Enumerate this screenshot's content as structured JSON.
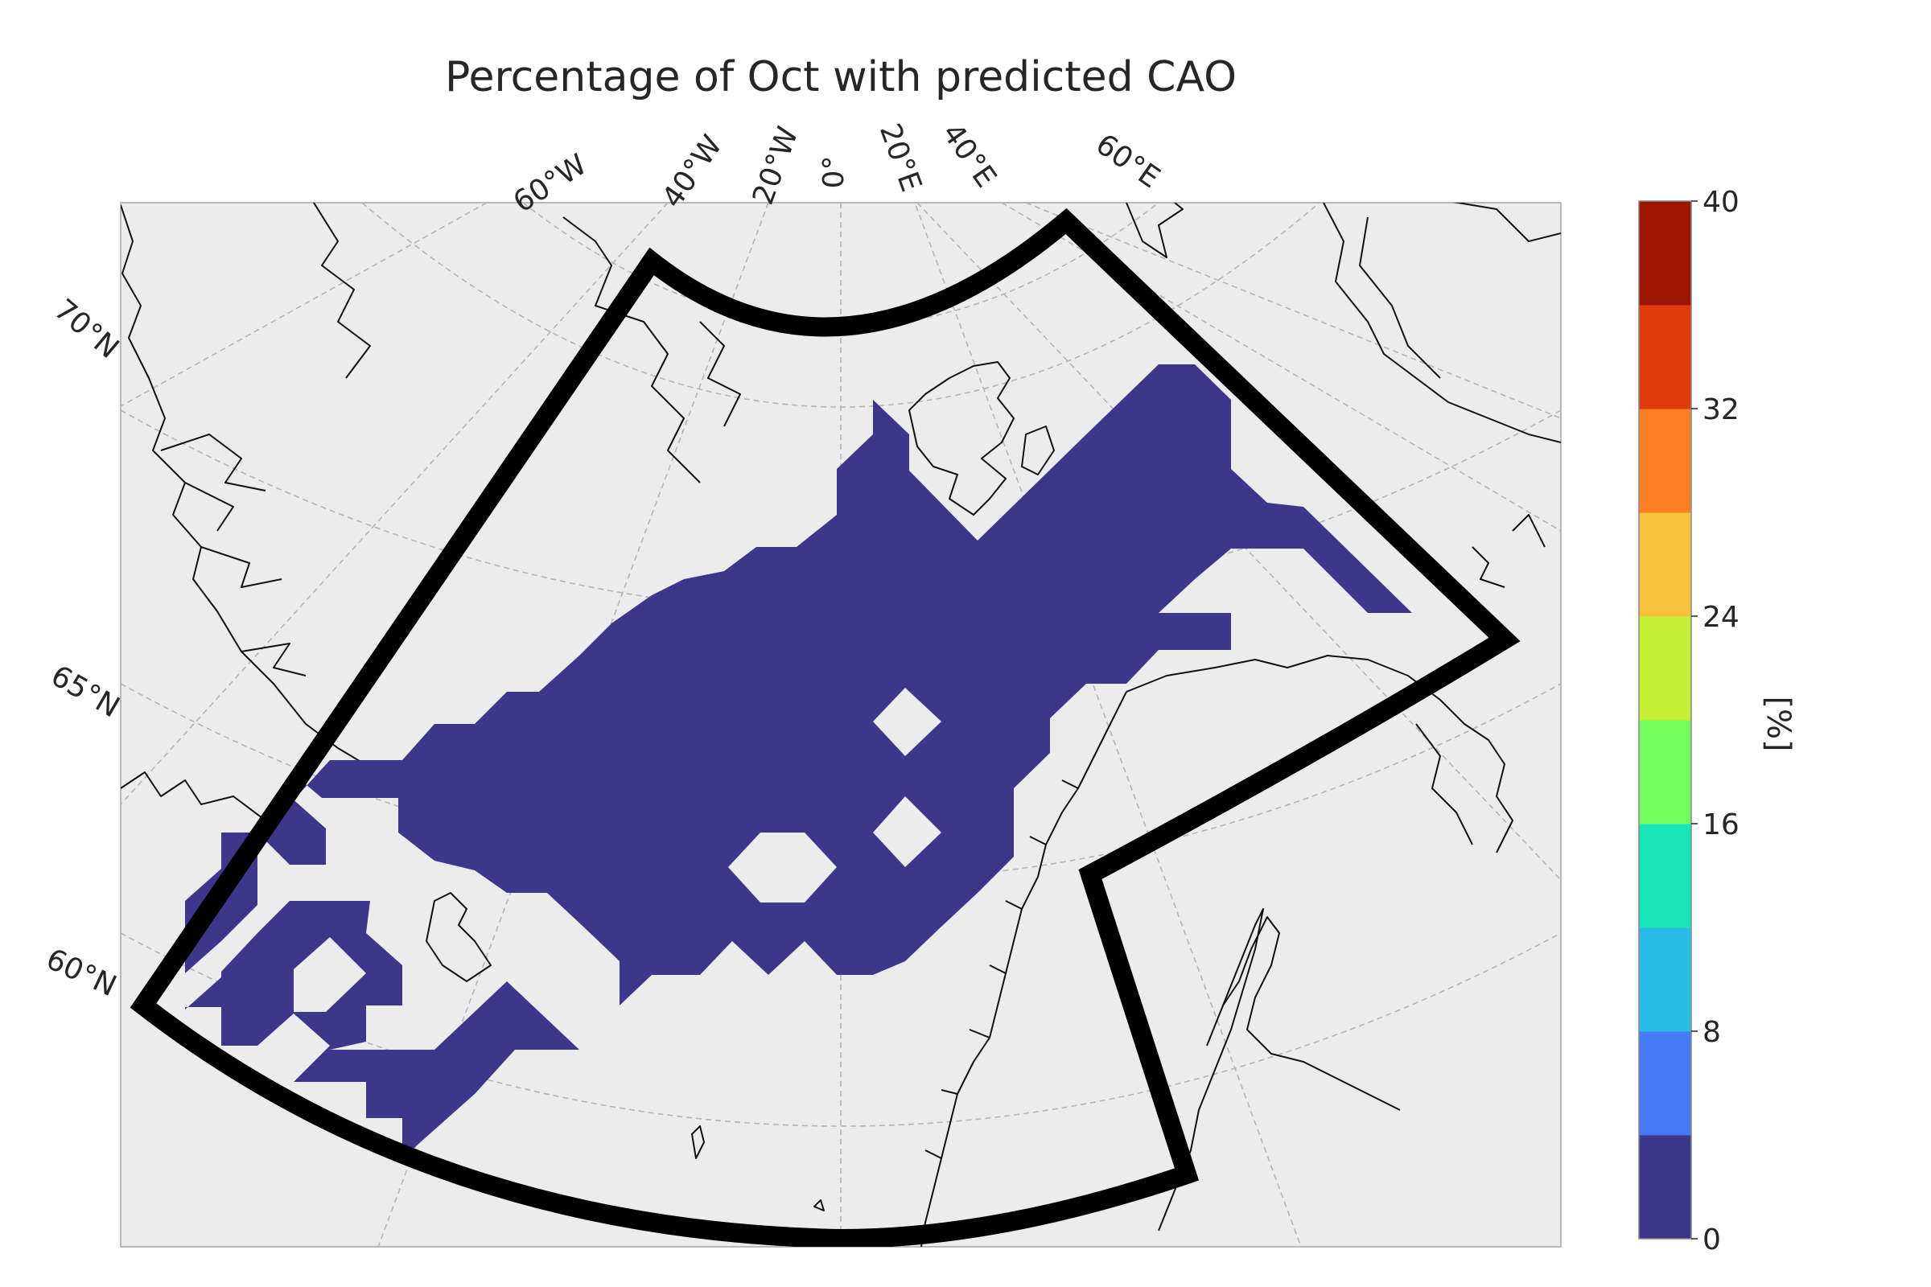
{
  "title": "Percentage of Oct with predicted CAO",
  "map": {
    "projection": "polar-stereographic",
    "lon_labels": [
      "60°W",
      "40°W",
      "20°W",
      "0°",
      "20°E",
      "40°E",
      "60°E"
    ],
    "lat_labels": [
      "70°N",
      "65°N",
      "60°N"
    ],
    "gridlines": true,
    "background_color": "#ececec",
    "field_color": "#3d378c",
    "region_outline_color": "#000000"
  },
  "chart_data": {
    "type": "heatmap",
    "variable": "Percentage of Oct with predicted CAO",
    "filled_bin": [
      0,
      4
    ],
    "colorbar": {
      "label": "[%]",
      "range": [
        0,
        40
      ],
      "ticks": [
        "0",
        "8",
        "16",
        "24",
        "32",
        "40"
      ],
      "colors": [
        "#3d378c",
        "#4679f3",
        "#28bce6",
        "#1ae5b6",
        "#73fe5d",
        "#c6ee34",
        "#f6c13b",
        "#fc7f24",
        "#de3d0b",
        "#9e1404"
      ]
    }
  }
}
